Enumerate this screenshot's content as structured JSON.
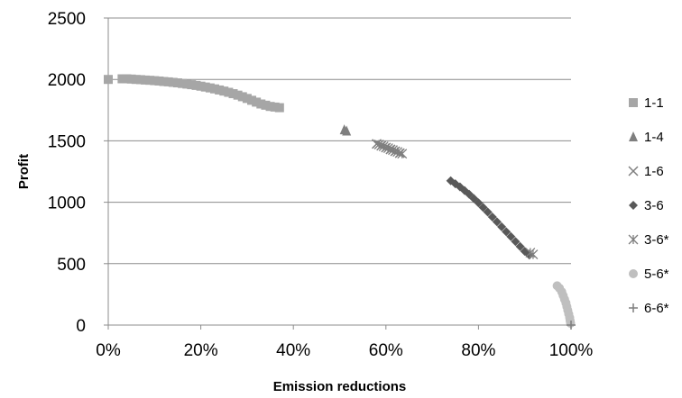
{
  "chart_data": {
    "type": "scatter",
    "title": "",
    "xlabel": "Emission reductions",
    "ylabel": "Profit",
    "xlim": [
      0,
      1
    ],
    "ylim": [
      0,
      2500
    ],
    "xticks": [
      0,
      0.2,
      0.4,
      0.6,
      0.8,
      1.0
    ],
    "xtick_labels": [
      "0%",
      "20%",
      "40%",
      "60%",
      "80%",
      "100%"
    ],
    "yticks": [
      0,
      500,
      1000,
      1500,
      2000,
      2500
    ],
    "ytick_labels": [
      "0",
      "500",
      "1000",
      "1500",
      "2000",
      "2500"
    ],
    "grid": "horizontal",
    "legend_position": "right",
    "series": [
      {
        "name": "1-1",
        "marker": "square",
        "color": "#a6a6a6",
        "x": [
          0.0,
          0.03,
          0.04,
          0.05,
          0.06,
          0.07,
          0.08,
          0.09,
          0.1,
          0.11,
          0.12,
          0.13,
          0.14,
          0.15,
          0.16,
          0.17,
          0.18,
          0.19,
          0.2,
          0.21,
          0.22,
          0.23,
          0.24,
          0.25,
          0.26,
          0.27,
          0.28,
          0.29,
          0.3,
          0.31,
          0.32,
          0.33,
          0.34,
          0.35,
          0.36,
          0.37
        ],
        "y": [
          2000,
          2005,
          2005,
          2003,
          2000,
          1998,
          1995,
          1993,
          1990,
          1987,
          1983,
          1980,
          1976,
          1972,
          1967,
          1962,
          1957,
          1951,
          1945,
          1938,
          1931,
          1923,
          1914,
          1905,
          1895,
          1884,
          1872,
          1859,
          1845,
          1830,
          1815,
          1800,
          1790,
          1780,
          1775,
          1770
        ]
      },
      {
        "name": "1-4",
        "marker": "triangle",
        "color": "#7f7f7f",
        "x": [
          0.51,
          0.515
        ],
        "y": [
          1590,
          1580
        ]
      },
      {
        "name": "1-6",
        "marker": "x",
        "color": "#7f7f7f",
        "x": [
          0.58,
          0.59,
          0.6,
          0.61,
          0.62,
          0.63
        ],
        "y": [
          1475,
          1460,
          1445,
          1430,
          1415,
          1400
        ]
      },
      {
        "name": "3-6",
        "marker": "diamond",
        "color": "#595959",
        "x": [
          0.74,
          0.75,
          0.76,
          0.77,
          0.78,
          0.79,
          0.8,
          0.81,
          0.82,
          0.83,
          0.84,
          0.85,
          0.86,
          0.87,
          0.88,
          0.89,
          0.9,
          0.91
        ],
        "y": [
          1175,
          1150,
          1125,
          1095,
          1065,
          1030,
          995,
          958,
          920,
          880,
          840,
          800,
          760,
          720,
          680,
          640,
          600,
          570
        ]
      },
      {
        "name": "3-6*",
        "marker": "asterisk",
        "color": "#7f7f7f",
        "x": [
          0.585,
          0.595,
          0.605,
          0.615,
          0.625,
          0.635,
          0.912,
          0.918
        ],
        "y": [
          1470,
          1455,
          1440,
          1425,
          1410,
          1395,
          590,
          575
        ]
      },
      {
        "name": "5-6*",
        "marker": "circle",
        "color": "#bfbfbf",
        "x": [
          0.97,
          0.975,
          0.98,
          0.983,
          0.986,
          0.989,
          0.991,
          0.993,
          0.995,
          0.997,
          0.998,
          0.999
        ],
        "y": [
          320,
          300,
          270,
          240,
          210,
          180,
          150,
          120,
          90,
          60,
          35,
          15
        ]
      },
      {
        "name": "6-6*",
        "marker": "plus",
        "color": "#7f7f7f",
        "x": [
          1.0
        ],
        "y": [
          0
        ]
      }
    ]
  }
}
